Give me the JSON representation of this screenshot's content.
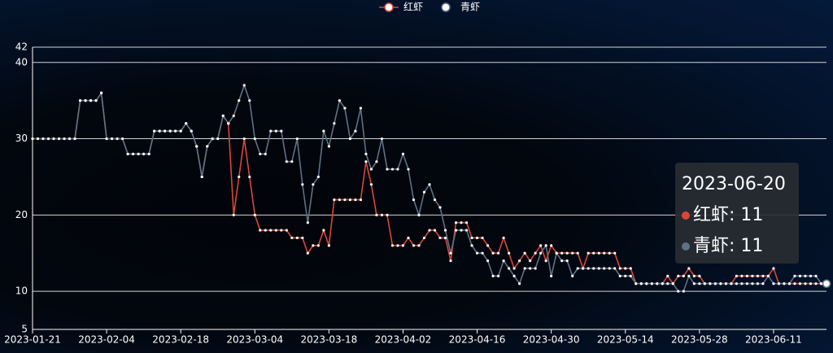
{
  "chart_data": {
    "type": "line",
    "categories": [
      "2023-01-21",
      null,
      null,
      null,
      null,
      null,
      null,
      null,
      null,
      null,
      null,
      null,
      null,
      null,
      "2023-02-04",
      null,
      null,
      null,
      null,
      null,
      null,
      null,
      null,
      null,
      null,
      null,
      null,
      null,
      "2023-02-18",
      null,
      null,
      null,
      null,
      null,
      null,
      null,
      null,
      null,
      null,
      null,
      null,
      null,
      "2023-03-04",
      null,
      null,
      null,
      null,
      null,
      null,
      null,
      null,
      null,
      null,
      null,
      null,
      null,
      "2023-03-18",
      null,
      null,
      null,
      null,
      null,
      null,
      null,
      null,
      null,
      null,
      null,
      null,
      null,
      "2023-04-02",
      null,
      null,
      null,
      null,
      null,
      null,
      null,
      null,
      null,
      null,
      null,
      null,
      null,
      "2023-04-16",
      null,
      null,
      null,
      null,
      null,
      null,
      null,
      null,
      null,
      null,
      null,
      null,
      null,
      "2023-04-30",
      null,
      null,
      null,
      null,
      null,
      null,
      null,
      null,
      null,
      null,
      null,
      null,
      null,
      "2023-05-14",
      null,
      null,
      null,
      null,
      null,
      null,
      null,
      null,
      null,
      null,
      null,
      null,
      null,
      "2023-05-28",
      null,
      null,
      null,
      null,
      null,
      null,
      null,
      null,
      null,
      null,
      null,
      null,
      null,
      "2023-06-11",
      null,
      null,
      null,
      null,
      null,
      null,
      null,
      null,
      null,
      "2023-06-20"
    ],
    "series": [
      {
        "name": "红虾",
        "color": "#d9463a",
        "values": [
          30,
          30,
          30,
          30,
          30,
          30,
          30,
          30,
          30,
          35,
          35,
          35,
          35,
          36,
          30,
          30,
          30,
          30,
          28,
          28,
          28,
          28,
          28,
          31,
          31,
          31,
          31,
          31,
          31,
          32,
          31,
          29,
          25,
          29,
          30,
          30,
          33,
          32,
          20,
          25,
          30,
          25,
          20,
          18,
          18,
          18,
          18,
          18,
          18,
          17,
          17,
          17,
          15,
          16,
          16,
          18,
          16,
          22,
          22,
          22,
          22,
          22,
          22,
          27,
          24,
          20,
          20,
          20,
          16,
          16,
          16,
          17,
          16,
          16,
          17,
          18,
          18,
          17,
          17,
          14,
          19,
          19,
          19,
          17,
          17,
          17,
          16,
          15,
          15,
          17,
          15,
          13,
          14,
          15,
          14,
          15,
          16,
          14,
          16,
          15,
          15,
          15,
          15,
          15,
          13,
          15,
          15,
          15,
          15,
          15,
          15,
          13,
          13,
          13,
          11,
          11,
          11,
          11,
          11,
          11,
          12,
          11,
          12,
          12,
          13,
          12,
          12,
          11,
          11,
          11,
          11,
          11,
          11,
          12,
          12,
          12,
          12,
          12,
          12,
          12,
          13,
          11,
          11,
          11,
          11,
          11,
          11,
          11,
          11,
          11,
          11
        ]
      },
      {
        "name": "青虾",
        "color": "#5d7285",
        "values": [
          30,
          30,
          30,
          30,
          30,
          30,
          30,
          30,
          30,
          35,
          35,
          35,
          35,
          36,
          30,
          30,
          30,
          30,
          28,
          28,
          28,
          28,
          28,
          31,
          31,
          31,
          31,
          31,
          31,
          32,
          31,
          29,
          25,
          29,
          30,
          30,
          33,
          32,
          33,
          35,
          37,
          35,
          30,
          28,
          28,
          31,
          31,
          31,
          27,
          27,
          30,
          24,
          19,
          24,
          25,
          31,
          29,
          32,
          35,
          34,
          30,
          31,
          34,
          28,
          26,
          27,
          30,
          26,
          26,
          26,
          28,
          26,
          22,
          20,
          23,
          24,
          22,
          21,
          18,
          15,
          18,
          18,
          18,
          16,
          15,
          15,
          14,
          12,
          12,
          14,
          13,
          12,
          11,
          13,
          13,
          13,
          15,
          16,
          12,
          15,
          14,
          14,
          12,
          13,
          13,
          13,
          13,
          13,
          13,
          13,
          13,
          12,
          12,
          12,
          11,
          11,
          11,
          11,
          11,
          11,
          11,
          11,
          10,
          10,
          12,
          11,
          11,
          11,
          11,
          11,
          11,
          11,
          11,
          11,
          11,
          11,
          11,
          11,
          11,
          12,
          11,
          11,
          11,
          11,
          12,
          12,
          12,
          12,
          12,
          11,
          11
        ]
      }
    ],
    "ylim": [
      5,
      42
    ],
    "yticks": [
      5,
      10,
      20,
      30,
      40,
      42
    ],
    "grid": true
  }
}
